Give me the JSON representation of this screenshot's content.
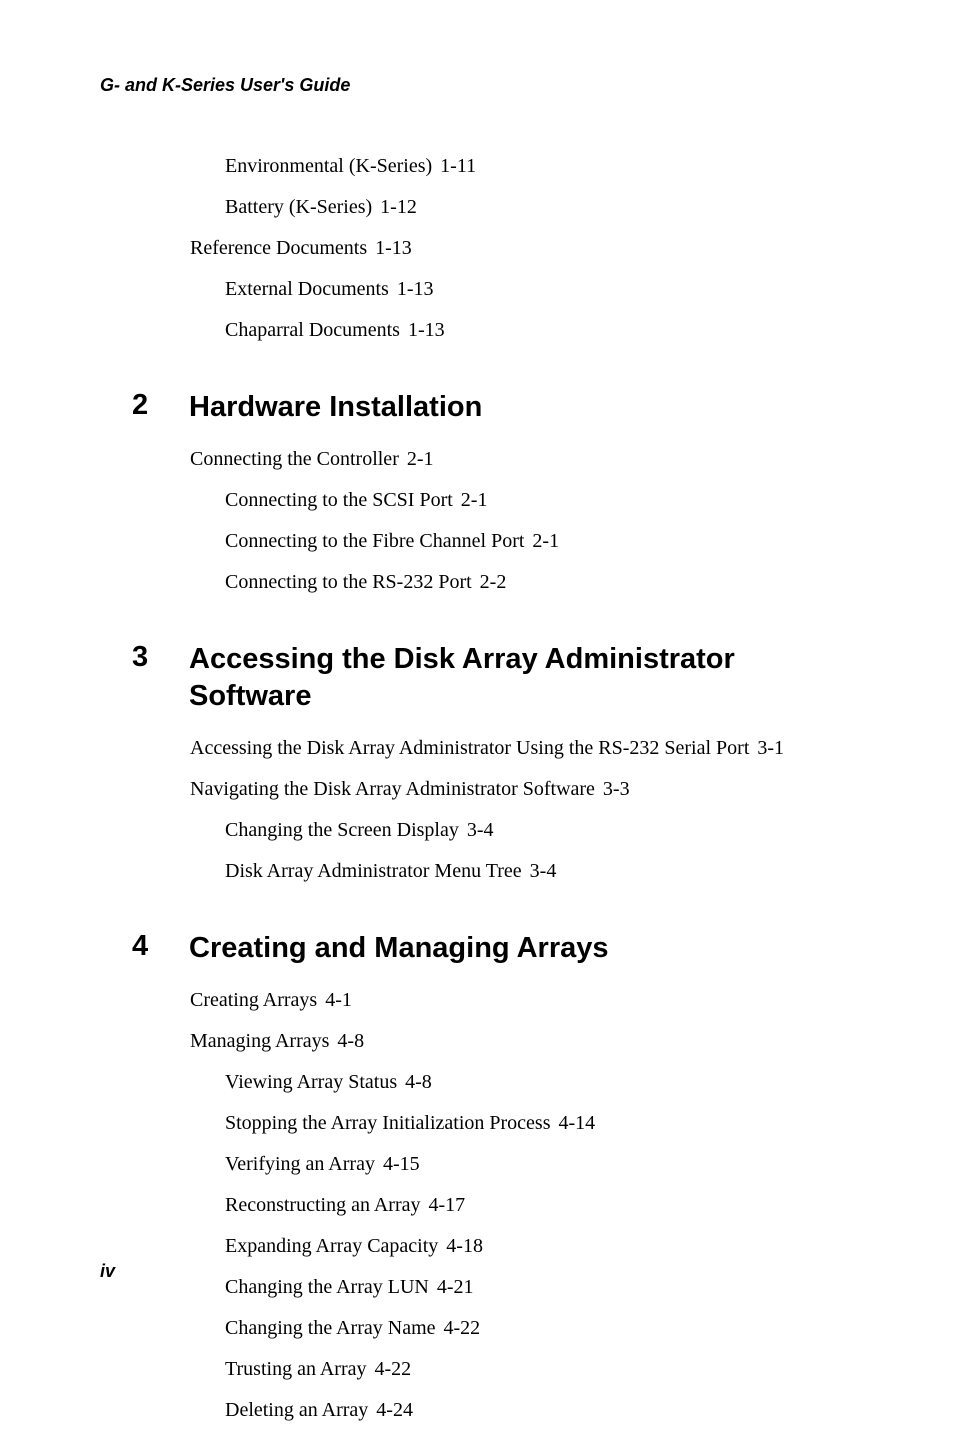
{
  "running_header": "G- and K-Series User's Guide",
  "page_number": "iv",
  "top_entries": [
    {
      "level": 2,
      "text": "Environmental (K-Series)",
      "page": "1-11"
    },
    {
      "level": 2,
      "text": "Battery (K-Series)",
      "page": "1-12"
    },
    {
      "level": 1,
      "text": "Reference Documents",
      "page": "1-13"
    },
    {
      "level": 2,
      "text": "External Documents",
      "page": "1-13"
    },
    {
      "level": 2,
      "text": "Chaparral Documents",
      "page": "1-13"
    }
  ],
  "chapters": [
    {
      "number": "2",
      "title": "Hardware Installation",
      "entries": [
        {
          "level": 1,
          "text": "Connecting the Controller",
          "page": "2-1"
        },
        {
          "level": 2,
          "text": "Connecting to the SCSI Port",
          "page": "2-1"
        },
        {
          "level": 2,
          "text": "Connecting to the Fibre Channel Port",
          "page": "2-1"
        },
        {
          "level": 2,
          "text": "Connecting to the RS-232 Port",
          "page": "2-2"
        }
      ]
    },
    {
      "number": "3",
      "title": "Accessing the Disk Array Administrator Software",
      "entries": [
        {
          "level": 1,
          "text": "Accessing the Disk Array Administrator Using the RS-232 Serial Port",
          "page": "3-1"
        },
        {
          "level": 1,
          "text": "Navigating the Disk Array Administrator Software",
          "page": "3-3"
        },
        {
          "level": 2,
          "text": "Changing the Screen Display",
          "page": "3-4"
        },
        {
          "level": 2,
          "text": "Disk Array Administrator Menu Tree",
          "page": "3-4"
        }
      ]
    },
    {
      "number": "4",
      "title": "Creating and Managing Arrays",
      "entries": [
        {
          "level": 1,
          "text": "Creating Arrays",
          "page": "4-1"
        },
        {
          "level": 1,
          "text": "Managing Arrays",
          "page": "4-8"
        },
        {
          "level": 2,
          "text": "Viewing Array Status",
          "page": "4-8"
        },
        {
          "level": 2,
          "text": "Stopping the Array Initialization Process",
          "page": "4-14"
        },
        {
          "level": 2,
          "text": "Verifying an Array",
          "page": "4-15"
        },
        {
          "level": 2,
          "text": "Reconstructing an Array",
          "page": "4-17"
        },
        {
          "level": 2,
          "text": "Expanding Array Capacity",
          "page": "4-18"
        },
        {
          "level": 2,
          "text": "Changing the Array LUN",
          "page": "4-21"
        },
        {
          "level": 2,
          "text": "Changing the Array Name",
          "page": "4-22"
        },
        {
          "level": 2,
          "text": "Trusting an Array",
          "page": "4-22"
        },
        {
          "level": 2,
          "text": "Deleting an Array",
          "page": "4-24"
        }
      ]
    }
  ]
}
